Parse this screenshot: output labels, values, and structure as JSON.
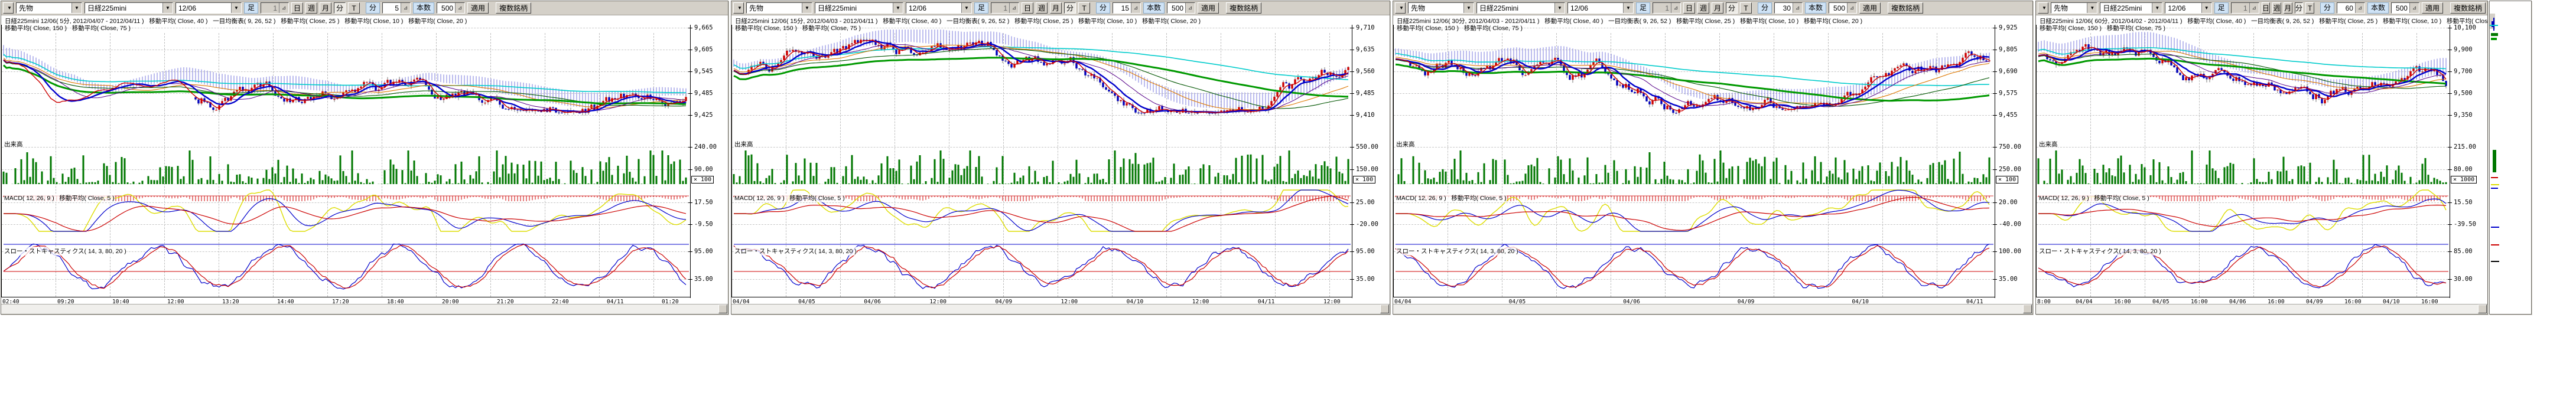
{
  "panels": [
    {
      "toolbar": {
        "category": "先物",
        "symbol": "日経225mini",
        "contract": "12/06",
        "bar_label": "足",
        "bar_count": "1",
        "period_day": "日",
        "period_week": "週",
        "period_month": "月",
        "period_min": "分",
        "period_tick": "T",
        "min_label": "分",
        "min_value": "5",
        "bars_label": "本数",
        "bars_value": "500",
        "apply": "適用",
        "multi": "複数銘柄"
      },
      "title_line1": "日経225mini 12/06( 5分, 2012/04/07 - 2012/04/11 )   移動平均( Close, 40 )   一目均衡表( 9, 26, 52 )   移動平均( Close, 25 )   移動平均( Close, 10 )   移動平均( Close, 20 )",
      "title_line2": "移動平均( Close, 150 )   移動平均( Close, 75 )",
      "volume_label": "出来高",
      "macd_label": "MACD( 12, 26, 9 )   移動平均( Close, 5 )",
      "stoch_label": "スロー・ストキャスティクス( 14, 3, 80, 20 )",
      "price_ticks": [
        "9,665",
        "9,605",
        "9,545",
        "9,485",
        "9,425"
      ],
      "volume_ticks": [
        "240.00",
        "90.00"
      ],
      "volume_mult": "× 100",
      "macd_ticks": [
        "17.50",
        "-9.50"
      ],
      "stoch_ticks": [
        "95.00",
        "35.00"
      ],
      "time_ticks": [
        "02:40",
        "09:20",
        "10:40",
        "12:00",
        "13:20",
        "14:40",
        "17:20",
        "18:40",
        "20:00",
        "21:20",
        "22:40",
        "04/11",
        "01:20"
      ]
    },
    {
      "toolbar": {
        "category": "先物",
        "symbol": "日経225mini",
        "contract": "12/06",
        "bar_label": "足",
        "bar_count": "1",
        "period_day": "日",
        "period_week": "週",
        "period_month": "月",
        "period_min": "分",
        "period_tick": "T",
        "min_label": "分",
        "min_value": "15",
        "bars_label": "本数",
        "bars_value": "500",
        "apply": "適用",
        "multi": "複数銘柄"
      },
      "title_line1": "日経225mini 12/06( 15分, 2012/04/03 - 2012/04/11 )   移動平均( Close, 40 )   一目均衡表( 9, 26, 52 )   移動平均( Close, 25 )   移動平均( Close, 10 )   移動平均( Close, 20 )",
      "title_line2": "移動平均( Close, 150 )   移動平均( Close, 75 )",
      "volume_label": "出来高",
      "macd_label": "MACD( 12, 26, 9 )   移動平均( Close, 5 )",
      "stoch_label": "スロー・ストキャスティクス( 14, 3, 80, 20 )",
      "price_ticks": [
        "9,710",
        "9,635",
        "9,560",
        "9,485",
        "9,410"
      ],
      "volume_ticks": [
        "550.00",
        "150.00"
      ],
      "volume_mult": "× 100",
      "macd_ticks": [
        "25.00",
        "-20.00"
      ],
      "stoch_ticks": [
        "95.00",
        "35.00"
      ],
      "time_ticks": [
        "04/04",
        "04/05",
        "04/06",
        "12:00",
        "04/09",
        "12:00",
        "04/10",
        "12:00",
        "04/11",
        "12:00"
      ]
    },
    {
      "toolbar": {
        "category": "先物",
        "symbol": "日経225mini",
        "contract": "12/06",
        "bar_label": "足",
        "bar_count": "1",
        "period_day": "日",
        "period_week": "週",
        "period_month": "月",
        "period_min": "分",
        "period_tick": "T",
        "min_label": "分",
        "min_value": "30",
        "bars_label": "本数",
        "bars_value": "500",
        "apply": "適用",
        "multi": "複数銘柄"
      },
      "title_line1": "日経225mini 12/06( 30分, 2012/04/03 - 2012/04/11 )   移動平均( Close, 40 )   一目均衡表( 9, 26, 52 )   移動平均( Close, 25 )   移動平均( Close, 10 )   移動平均( Close, 20 )",
      "title_line2": "移動平均( Close, 150 )   移動平均( Close, 75 )",
      "volume_label": "出来高",
      "macd_label": "MACD( 12, 26, 9 )   移動平均( Close, 5 )",
      "stoch_label": "スロー・ストキャスティクス( 14, 3, 80, 20 )",
      "price_ticks": [
        "9,925",
        "9,805",
        "9,690",
        "9,575",
        "9,455"
      ],
      "volume_ticks": [
        "750.00",
        "250.00"
      ],
      "volume_mult": "× 100",
      "macd_ticks": [
        "20.00",
        "-40.00"
      ],
      "stoch_ticks": [
        "100.00",
        "35.00"
      ],
      "time_ticks": [
        "04/04",
        "04/05",
        "04/06",
        "04/09",
        "04/10",
        "04/11"
      ]
    },
    {
      "toolbar": {
        "category": "先物",
        "symbol": "日経225mini",
        "contract": "12/06",
        "bar_label": "足",
        "bar_count": "1",
        "period_day": "日",
        "period_week": "週",
        "period_month": "月",
        "period_min": "分",
        "period_tick": "T",
        "min_label": "分",
        "min_value": "60",
        "bars_label": "本数",
        "bars_value": "500",
        "apply": "適用",
        "multi": "複数銘柄"
      },
      "title_line1": "日経225mini 12/06( 60分, 2012/04/02 - 2012/04/11 )   移動平均( Close, 40 )   一目均衡表( 9, 26, 52 )   移動平均( Close, 25 )   移動平均( Close, 10 )   移動平均( Close, 20 )",
      "title_line2": "移動平均( Close, 150 )   移動平均( Close, 75 )",
      "volume_label": "出来高",
      "macd_label": "MACD( 12, 26, 9 )   移動平均( Close, 5 )",
      "stoch_label": "スロー・ストキャスティクス( 14, 3, 80, 20 )",
      "price_ticks": [
        "10,100",
        "9,900",
        "9,700",
        "9,500",
        "9,350"
      ],
      "volume_ticks": [
        "215.00",
        "80.00"
      ],
      "volume_mult": "× 1000",
      "macd_ticks": [
        "15.50",
        "-39.50"
      ],
      "stoch_ticks": [
        "85.00",
        "30.00"
      ],
      "time_ticks": [
        "8:00",
        "04/04",
        "16:00",
        "04/05",
        "16:00",
        "04/06",
        "16:00",
        "04/09",
        "16:00",
        "04/10",
        "16:00"
      ]
    }
  ],
  "colors": {
    "chrome": "#d4d0c8",
    "up_candle": "#cc0000",
    "down_candle": "#0000bb",
    "volume": "#007700",
    "ma_fast_red": "#cc0000",
    "ma_blue": "#0000cc",
    "ma_green_thick": "#009900",
    "ma_cyan": "#00cccc",
    "ma_orange": "#dd7700",
    "ma_purple": "#550088",
    "ma_darkgreen": "#005500",
    "macd_yellow": "#dddd00",
    "stoch_red": "#cc0000",
    "stoch_blue": "#0000cc",
    "cloud": "#3333cc"
  }
}
